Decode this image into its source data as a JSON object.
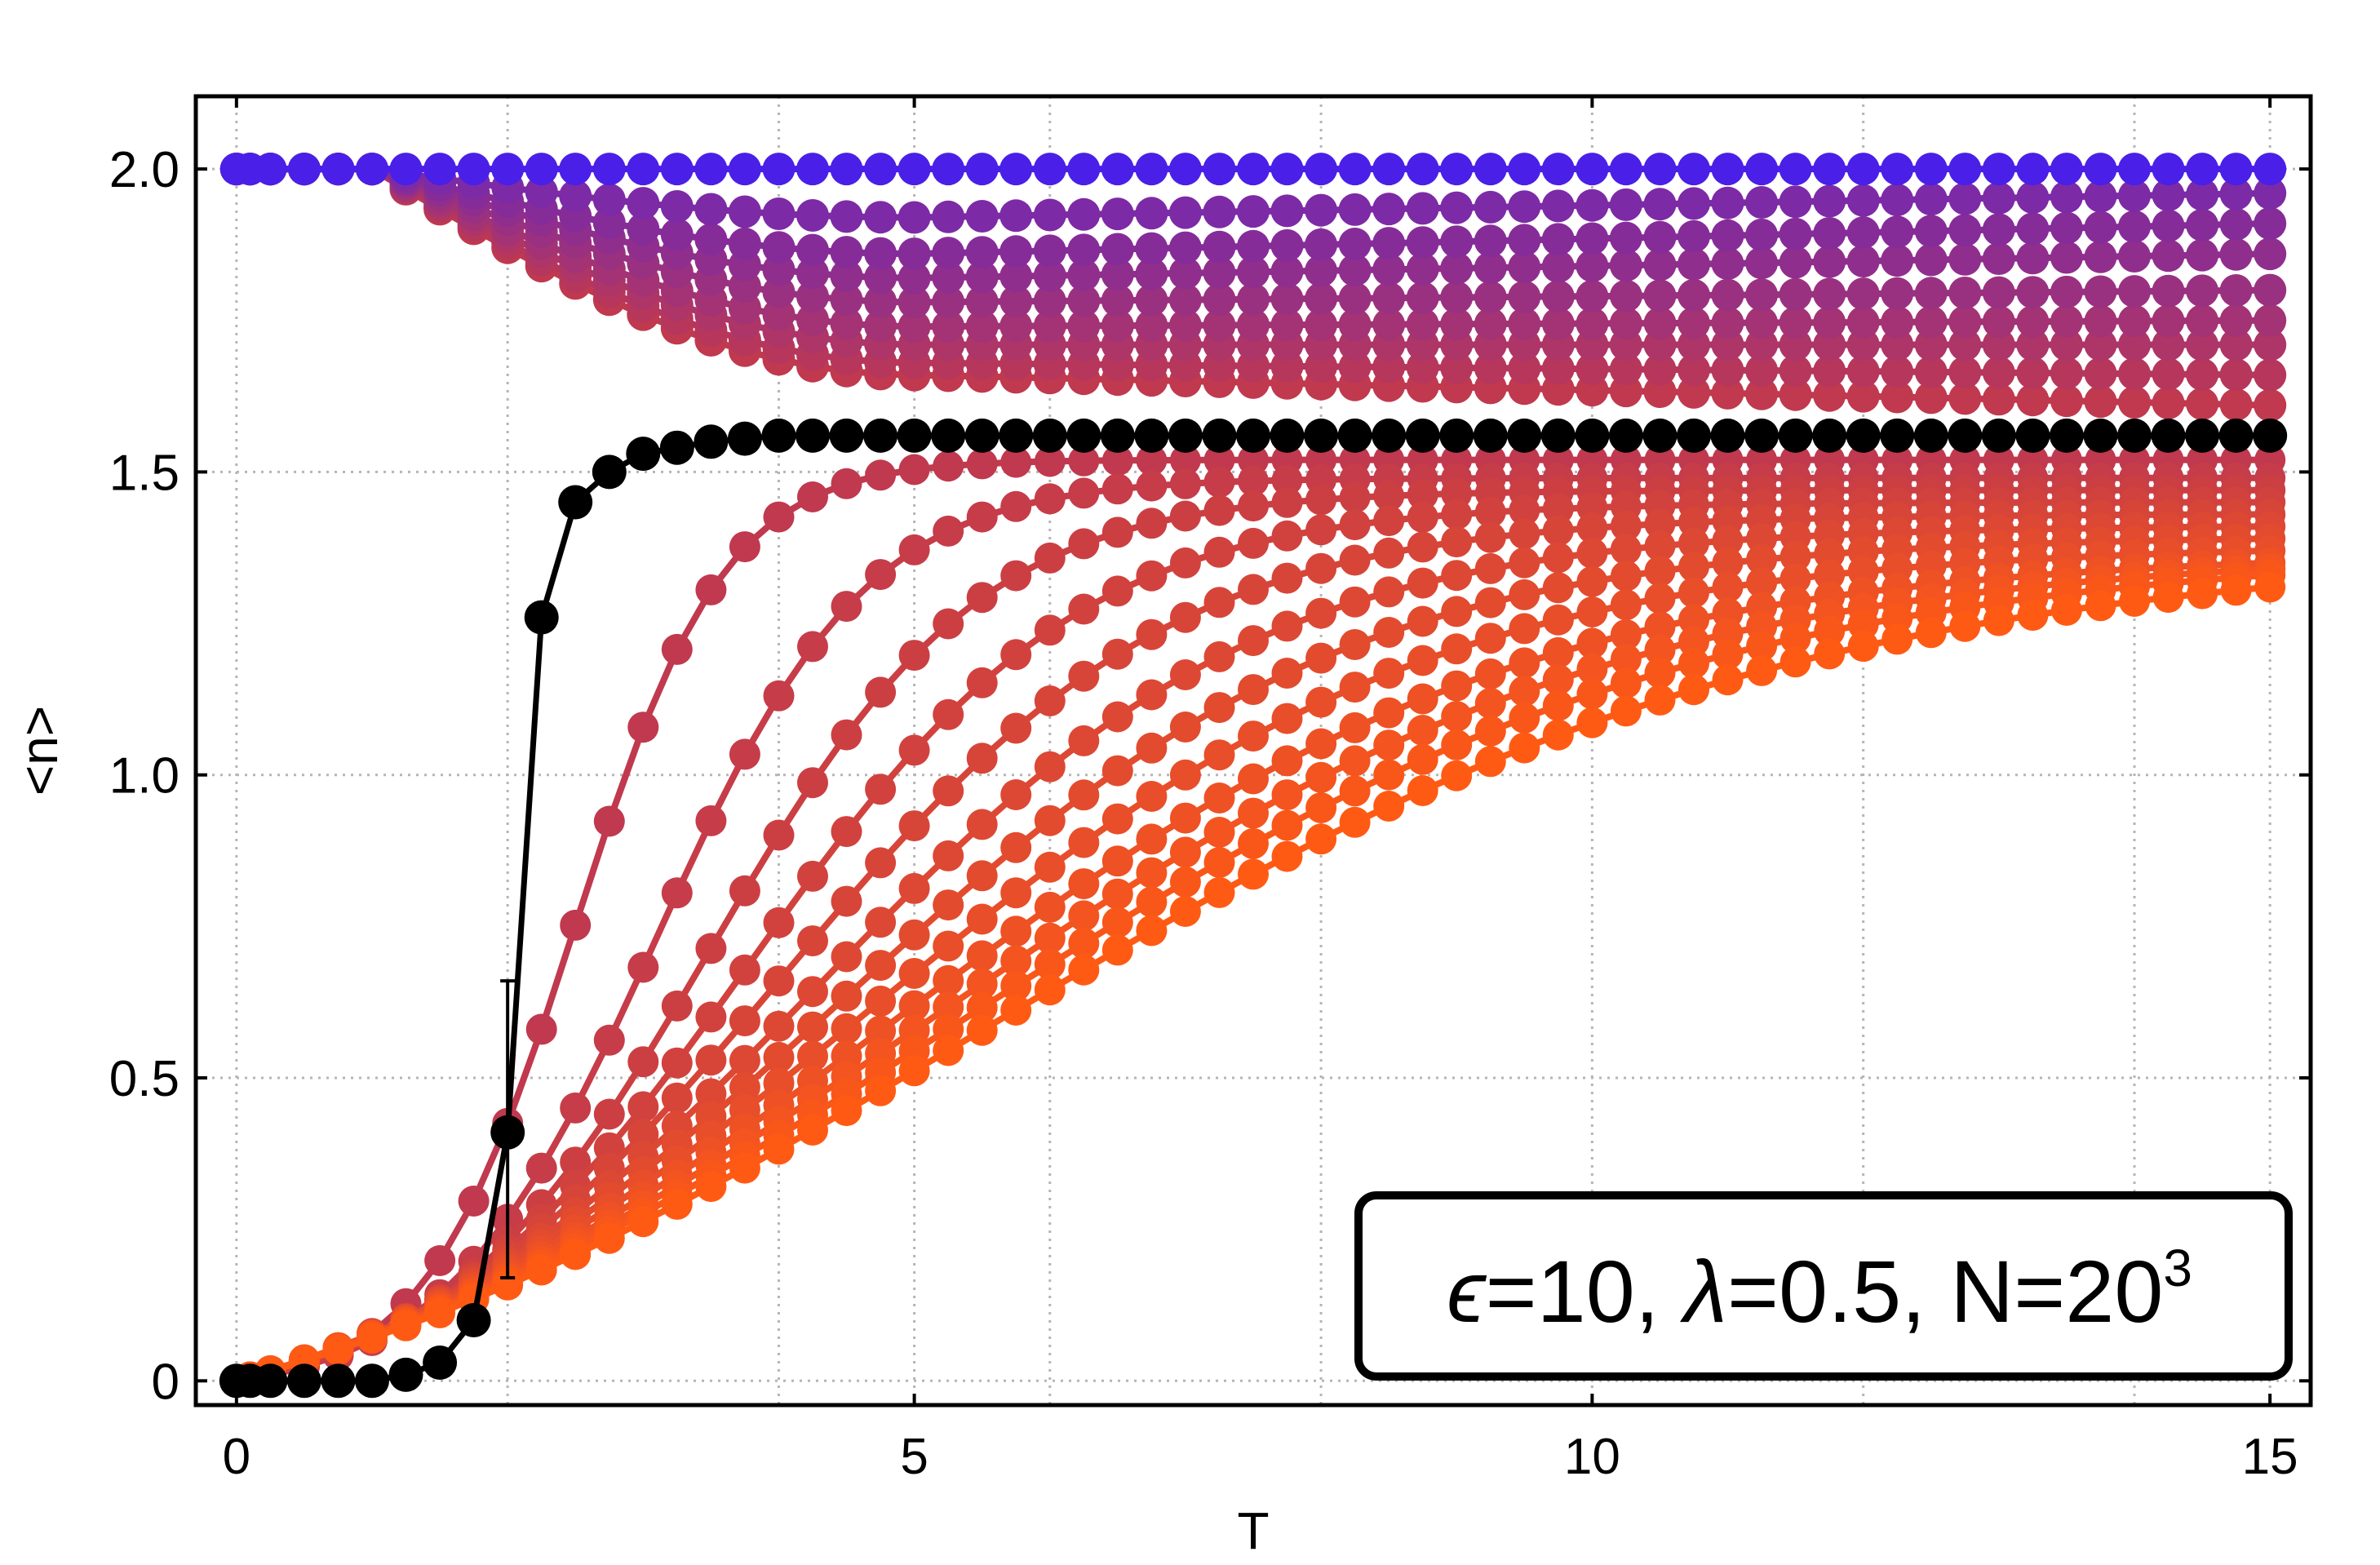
{
  "chart_data": {
    "type": "scatter",
    "title": "",
    "xlabel": "T",
    "ylabel": "<n>",
    "xlim": [
      -0.3,
      15.3
    ],
    "ylim": [
      -0.04,
      2.12
    ],
    "xticks": [
      0,
      5,
      10,
      15
    ],
    "xtick_labels": [
      "0",
      "5",
      "10",
      "15"
    ],
    "yticks": [
      0,
      0.5,
      1.0,
      1.5,
      2.0
    ],
    "ytick_labels": [
      "0",
      "0.5",
      "1.0",
      "1.5",
      "2.0"
    ],
    "minor_x_gridlines": [
      2,
      4,
      6,
      8,
      12,
      14
    ],
    "grid": true,
    "annotation": {
      "parts": [
        "ϵ",
        "=10, ",
        "λ",
        "=0.5, N=20",
        "3"
      ],
      "placement": "bottom-right"
    },
    "colors": {
      "highlight": "#000000",
      "top_family": "#4a1fe8",
      "mid_family": "#c0394e",
      "bottom_family": "#ff5a14"
    },
    "x": [
      0.0,
      0.1,
      0.25,
      0.5,
      0.75,
      1.0,
      1.25,
      1.5,
      1.75,
      2.0,
      2.25,
      2.5,
      2.75,
      3.0,
      3.25,
      3.5,
      3.75,
      4.0,
      4.25,
      4.5,
      4.75,
      5.0,
      5.25,
      5.5,
      5.75,
      6.0,
      6.25,
      6.5,
      6.75,
      7.0,
      7.25,
      7.5,
      7.75,
      8.0,
      8.25,
      8.5,
      8.75,
      9.0,
      9.25,
      9.5,
      9.75,
      10.0,
      10.25,
      10.5,
      10.75,
      11.0,
      11.25,
      11.5,
      11.75,
      12.0,
      12.25,
      12.5,
      12.75,
      13.0,
      13.25,
      13.5,
      13.75,
      14.0,
      14.25,
      14.5,
      14.75,
      15.0
    ],
    "highlight_series": {
      "values": [
        0.0,
        0.0,
        0.0,
        0.0,
        0.0,
        0.0,
        0.01,
        0.03,
        0.1,
        0.41,
        1.26,
        1.45,
        1.5,
        1.53,
        1.54,
        1.55,
        1.555,
        1.56,
        1.56,
        1.56,
        1.56,
        1.56,
        1.56,
        1.56,
        1.56,
        1.56,
        1.56,
        1.56,
        1.56,
        1.56,
        1.56,
        1.56,
        1.56,
        1.56,
        1.56,
        1.56,
        1.56,
        1.56,
        1.56,
        1.56,
        1.56,
        1.56,
        1.56,
        1.56,
        1.56,
        1.56,
        1.56,
        1.56,
        1.56,
        1.56,
        1.56,
        1.56,
        1.56,
        1.56,
        1.56,
        1.56,
        1.56,
        1.56,
        1.56,
        1.56,
        1.56,
        1.56
      ],
      "error_bar": {
        "x": 2.0,
        "low": 0.17,
        "high": 0.66
      }
    },
    "upper_family": {
      "count": 9,
      "start": 1.0,
      "end_values_at_15": [
        2.0,
        1.96,
        1.91,
        1.86,
        1.8,
        1.75,
        1.71,
        1.66,
        1.61
      ],
      "end_values_at_5": [
        2.0,
        1.92,
        1.86,
        1.82,
        1.78,
        1.74,
        1.71,
        1.68,
        1.66
      ]
    },
    "lower_family": {
      "count": 12,
      "midpoints_T": [
        2.5,
        3.1,
        3.5,
        3.8,
        4.05,
        4.3,
        4.5,
        4.7,
        4.9,
        5.1,
        5.3,
        5.5
      ],
      "end_values_at_15": [
        1.52,
        1.49,
        1.47,
        1.45,
        1.43,
        1.41,
        1.39,
        1.37,
        1.35,
        1.34,
        1.33,
        1.31
      ]
    }
  }
}
